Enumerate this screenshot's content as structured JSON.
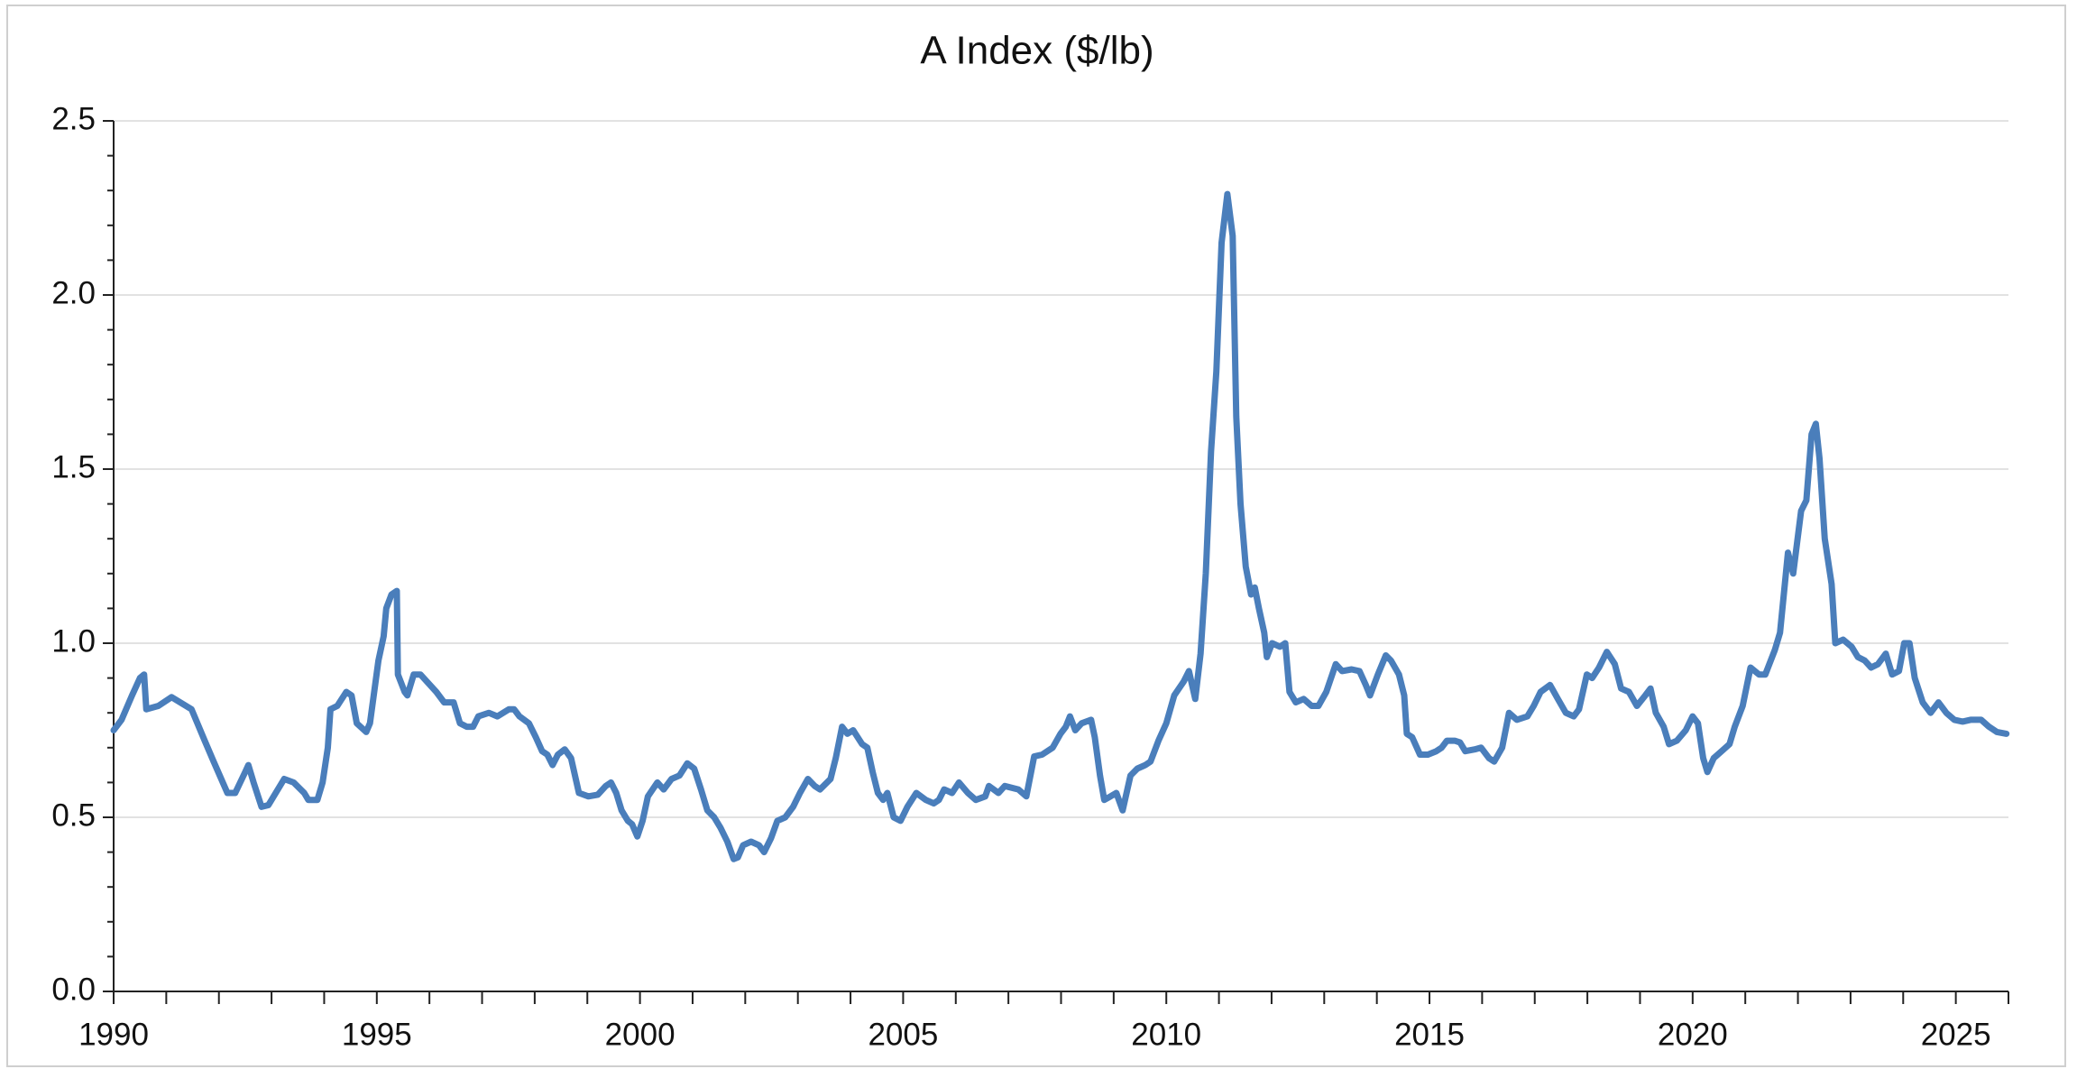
{
  "chart_data": {
    "type": "line",
    "title": "A Index ($/lb)",
    "color": "#4a7ebb",
    "grid": true,
    "xlim": [
      1990,
      2026
    ],
    "xticks": [
      1990,
      1995,
      2000,
      2005,
      2010,
      2015,
      2020,
      2025
    ],
    "xminorticks": [
      1991,
      1992,
      1993,
      1994,
      1996,
      1997,
      1998,
      1999,
      2001,
      2002,
      2003,
      2004,
      2006,
      2007,
      2008,
      2009,
      2011,
      2012,
      2013,
      2014,
      2016,
      2017,
      2018,
      2019,
      2021,
      2022,
      2023,
      2024,
      2026
    ],
    "ylim": [
      0,
      2.5
    ],
    "yticks": [
      {
        "value": 0,
        "label": "0.0"
      },
      0.5,
      {
        "value": 1,
        "label": "1.0"
      },
      1.5,
      {
        "value": 2,
        "label": "2.0"
      },
      2.5
    ],
    "yminorticks": [
      0.1,
      0.2,
      0.3,
      0.4,
      0.6,
      0.7,
      0.8,
      0.9,
      1.1,
      1.2,
      1.3,
      1.4,
      1.6,
      1.7,
      1.8,
      1.9,
      2.1,
      2.2,
      2.3,
      2.4
    ],
    "x": [
      1990.0,
      1990.15,
      1990.35,
      1990.5,
      1990.58,
      1990.62,
      1990.85,
      1991.1,
      1991.48,
      1991.73,
      1991.9,
      1992.16,
      1992.31,
      1992.5,
      1992.56,
      1992.66,
      1992.81,
      1992.94,
      1993.24,
      1993.42,
      1993.62,
      1993.7,
      1993.87,
      1993.97,
      1994.07,
      1994.12,
      1994.25,
      1994.42,
      1994.52,
      1994.62,
      1994.8,
      1994.87,
      1995.03,
      1995.13,
      1995.18,
      1995.28,
      1995.38,
      1995.4,
      1995.53,
      1995.58,
      1995.7,
      1995.83,
      1996.13,
      1996.28,
      1996.46,
      1996.58,
      1996.71,
      1996.83,
      1996.93,
      1997.13,
      1997.29,
      1997.51,
      1997.61,
      1997.71,
      1997.89,
      1998.02,
      1998.14,
      1998.24,
      1998.34,
      1998.44,
      1998.57,
      1998.69,
      1998.84,
      1999.02,
      1999.2,
      1999.35,
      1999.45,
      1999.55,
      1999.65,
      1999.77,
      1999.85,
      1999.95,
      2000.05,
      2000.15,
      2000.33,
      2000.45,
      2000.6,
      2000.75,
      2000.9,
      2001.03,
      2001.16,
      2001.28,
      2001.41,
      2001.53,
      2001.66,
      2001.78,
      2001.86,
      2001.96,
      2002.11,
      2002.26,
      2002.36,
      2002.49,
      2002.61,
      2002.76,
      2002.91,
      2003.04,
      2003.19,
      2003.32,
      2003.42,
      2003.62,
      2003.72,
      2003.84,
      2003.94,
      2004.05,
      2004.22,
      2004.32,
      2004.42,
      2004.52,
      2004.62,
      2004.7,
      2004.82,
      2004.95,
      2005.08,
      2005.25,
      2005.43,
      2005.58,
      2005.68,
      2005.78,
      2005.93,
      2006.06,
      2006.23,
      2006.38,
      2006.56,
      2006.63,
      2006.81,
      2006.93,
      2007.19,
      2007.34,
      2007.49,
      2007.64,
      2007.84,
      2007.99,
      2008.09,
      2008.17,
      2008.27,
      2008.39,
      2008.57,
      2008.64,
      2008.74,
      2008.82,
      2008.94,
      2009.05,
      2009.17,
      2009.32,
      2009.45,
      2009.6,
      2009.7,
      2009.85,
      2010.0,
      2010.15,
      2010.33,
      2010.43,
      2010.55,
      2010.65,
      2010.75,
      2010.85,
      2010.95,
      2011.05,
      2011.16,
      2011.26,
      2011.33,
      2011.41,
      2011.51,
      2011.61,
      2011.68,
      2011.76,
      2011.86,
      2011.91,
      2012.01,
      2012.16,
      2012.26,
      2012.34,
      2012.46,
      2012.61,
      2012.76,
      2012.89,
      2013.04,
      2013.22,
      2013.34,
      2013.52,
      2013.67,
      2013.79,
      2013.87,
      2014.02,
      2014.17,
      2014.27,
      2014.42,
      2014.52,
      2014.57,
      2014.67,
      2014.82,
      2014.97,
      2015.13,
      2015.23,
      2015.33,
      2015.48,
      2015.58,
      2015.68,
      2015.86,
      2015.98,
      2016.13,
      2016.23,
      2016.38,
      2016.51,
      2016.66,
      2016.86,
      2016.98,
      2017.11,
      2017.29,
      2017.44,
      2017.59,
      2017.74,
      2017.84,
      2017.99,
      2018.09,
      2018.22,
      2018.37,
      2018.52,
      2018.64,
      2018.79,
      2018.94,
      2019.1,
      2019.2,
      2019.3,
      2019.45,
      2019.55,
      2019.7,
      2019.87,
      2020.0,
      2020.1,
      2020.2,
      2020.28,
      2020.4,
      2020.55,
      2020.7,
      2020.8,
      2020.95,
      2021.1,
      2021.26,
      2021.38,
      2021.56,
      2021.66,
      2021.81,
      2021.91,
      2022.06,
      2022.16,
      2022.26,
      2022.34,
      2022.41,
      2022.51,
      2022.64,
      2022.71,
      2022.86,
      2023.02,
      2023.14,
      2023.27,
      2023.39,
      2023.52,
      2023.67,
      2023.79,
      2023.92,
      2024.02,
      2024.12,
      2024.22,
      2024.37,
      2024.52,
      2024.67,
      2024.82,
      2024.97,
      2025.13,
      2025.28,
      2025.48,
      2025.63,
      2025.78,
      2025.96
    ],
    "values": [
      0.75,
      0.78,
      0.85,
      0.9,
      0.91,
      0.81,
      0.82,
      0.845,
      0.81,
      0.72,
      0.66,
      0.57,
      0.57,
      0.63,
      0.65,
      0.6,
      0.53,
      0.535,
      0.61,
      0.6,
      0.57,
      0.55,
      0.55,
      0.6,
      0.7,
      0.81,
      0.82,
      0.86,
      0.85,
      0.77,
      0.745,
      0.77,
      0.95,
      1.02,
      1.1,
      1.14,
      1.15,
      0.91,
      0.86,
      0.85,
      0.91,
      0.91,
      0.86,
      0.83,
      0.83,
      0.77,
      0.76,
      0.76,
      0.79,
      0.8,
      0.79,
      0.81,
      0.81,
      0.79,
      0.77,
      0.73,
      0.69,
      0.68,
      0.65,
      0.68,
      0.695,
      0.67,
      0.57,
      0.56,
      0.565,
      0.59,
      0.6,
      0.57,
      0.52,
      0.49,
      0.48,
      0.445,
      0.49,
      0.56,
      0.6,
      0.58,
      0.61,
      0.62,
      0.655,
      0.64,
      0.58,
      0.52,
      0.5,
      0.47,
      0.43,
      0.38,
      0.385,
      0.42,
      0.43,
      0.42,
      0.4,
      0.44,
      0.49,
      0.5,
      0.53,
      0.57,
      0.61,
      0.59,
      0.58,
      0.61,
      0.67,
      0.76,
      0.74,
      0.75,
      0.71,
      0.7,
      0.63,
      0.57,
      0.55,
      0.57,
      0.5,
      0.49,
      0.53,
      0.57,
      0.55,
      0.54,
      0.55,
      0.58,
      0.57,
      0.6,
      0.57,
      0.55,
      0.56,
      0.59,
      0.57,
      0.59,
      0.58,
      0.56,
      0.675,
      0.68,
      0.7,
      0.74,
      0.76,
      0.79,
      0.75,
      0.77,
      0.78,
      0.73,
      0.62,
      0.55,
      0.56,
      0.57,
      0.52,
      0.62,
      0.64,
      0.65,
      0.66,
      0.72,
      0.77,
      0.85,
      0.89,
      0.92,
      0.84,
      0.97,
      1.2,
      1.55,
      1.78,
      2.15,
      2.29,
      2.17,
      1.65,
      1.4,
      1.22,
      1.14,
      1.16,
      1.1,
      1.03,
      0.96,
      1.0,
      0.99,
      1.0,
      0.86,
      0.83,
      0.84,
      0.82,
      0.82,
      0.86,
      0.94,
      0.92,
      0.925,
      0.92,
      0.88,
      0.85,
      0.91,
      0.965,
      0.95,
      0.91,
      0.85,
      0.74,
      0.73,
      0.68,
      0.68,
      0.69,
      0.7,
      0.72,
      0.72,
      0.715,
      0.69,
      0.695,
      0.7,
      0.67,
      0.66,
      0.7,
      0.8,
      0.78,
      0.79,
      0.82,
      0.86,
      0.88,
      0.84,
      0.8,
      0.79,
      0.81,
      0.91,
      0.9,
      0.93,
      0.975,
      0.94,
      0.87,
      0.86,
      0.82,
      0.85,
      0.87,
      0.8,
      0.76,
      0.71,
      0.72,
      0.75,
      0.79,
      0.77,
      0.67,
      0.63,
      0.67,
      0.69,
      0.71,
      0.76,
      0.82,
      0.93,
      0.91,
      0.91,
      0.98,
      1.03,
      1.26,
      1.2,
      1.38,
      1.41,
      1.6,
      1.63,
      1.53,
      1.3,
      1.17,
      1.0,
      1.01,
      0.99,
      0.96,
      0.95,
      0.93,
      0.94,
      0.97,
      0.91,
      0.92,
      1.0,
      1.0,
      0.9,
      0.83,
      0.8,
      0.83,
      0.8,
      0.78,
      0.775,
      0.78,
      0.78,
      0.76,
      0.745,
      0.74
    ]
  }
}
